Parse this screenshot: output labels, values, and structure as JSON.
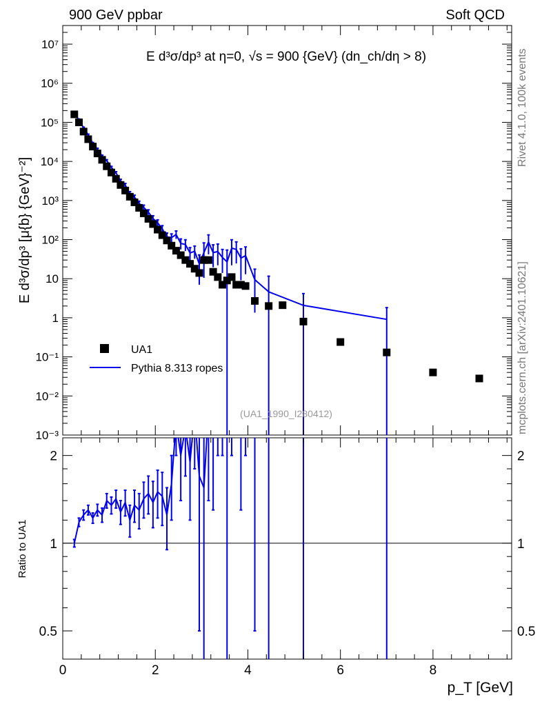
{
  "header": {
    "left": "900 GeV ppbar",
    "right": "Soft QCD"
  },
  "side_text": {
    "rivet": "Rivet 4.1.0,  100k events",
    "mcplots": "mcplots.cern.ch [arXiv:2401.10621]"
  },
  "chart_data": {
    "type": "scatter",
    "title": "E  d³σ/dp³ at η=0, √s = 900 {GeV} (dn_ch/dη > 8)",
    "watermark": "(UA1_1990_I280412)",
    "xlabel": "p_T [GeV]",
    "ylabel_main": "E d³σ/dp³ [μ{b} {GeV}⁻²]",
    "ylabel_ratio": "Ratio to UA1",
    "xlim": [
      0,
      9.7
    ],
    "ylim_main": [
      0.001,
      30000000
    ],
    "ylim_ratio": [
      0.4,
      2.3
    ],
    "yscale": "log",
    "x_ticks": [
      "0",
      "2",
      "4",
      "6",
      "8"
    ],
    "y_ticks_main": [
      "10⁻³",
      "10⁻²",
      "10⁻¹",
      "1",
      "10",
      "10²",
      "10³",
      "10⁴",
      "10⁵",
      "10⁶",
      "10⁷"
    ],
    "y_ticks_ratio": [
      "0.5",
      "1",
      "2"
    ],
    "legend": {
      "position": "lower-left",
      "entries": [
        "UA1",
        "Pythia 8.313 ropes"
      ]
    },
    "colors": {
      "data": "#000000",
      "mc": "#0000ee"
    },
    "data_series": {
      "name": "UA1",
      "x": [
        0.25,
        0.35,
        0.45,
        0.55,
        0.65,
        0.75,
        0.85,
        0.95,
        1.05,
        1.15,
        1.25,
        1.35,
        1.45,
        1.55,
        1.65,
        1.75,
        1.85,
        1.95,
        2.05,
        2.15,
        2.25,
        2.35,
        2.45,
        2.55,
        2.65,
        2.75,
        2.85,
        2.95,
        3.05,
        3.15,
        3.25,
        3.35,
        3.45,
        3.55,
        3.65,
        3.75,
        3.85,
        3.95,
        4.15,
        4.45,
        4.75,
        5.2,
        6.0,
        7.0,
        8.0,
        9.0
      ],
      "y": [
        160000,
        100000,
        58000,
        37000,
        24000,
        16000,
        11000,
        7500,
        5200,
        3600,
        2500,
        1800,
        1250,
        900,
        650,
        470,
        340,
        250,
        180,
        130,
        95,
        70,
        52,
        40,
        30,
        24,
        18,
        14,
        30,
        30,
        15,
        11,
        7,
        9,
        11,
        7,
        7,
        6.5,
        2.7,
        2,
        2.1,
        0.8,
        0.24,
        0.13,
        0.04,
        0.028
      ]
    },
    "mc_series": {
      "name": "Pythia 8.313 ropes",
      "x": [
        0.25,
        0.35,
        0.45,
        0.55,
        0.65,
        0.75,
        0.85,
        0.95,
        1.05,
        1.15,
        1.25,
        1.35,
        1.45,
        1.55,
        1.65,
        1.75,
        1.85,
        1.95,
        2.05,
        2.15,
        2.25,
        2.35,
        2.45,
        2.55,
        2.65,
        2.75,
        2.85,
        2.95,
        3.05,
        3.15,
        3.25,
        3.35,
        3.45,
        3.55,
        3.65,
        3.75,
        3.85,
        3.95,
        4.15,
        4.45,
        5.2,
        7.0
      ],
      "ratio": [
        1.0,
        1.18,
        1.25,
        1.3,
        1.22,
        1.3,
        1.25,
        1.4,
        1.35,
        1.42,
        1.28,
        1.38,
        1.2,
        1.35,
        1.3,
        1.42,
        1.48,
        1.38,
        1.5,
        1.45,
        1.25,
        1.6,
        2.6,
        2.0,
        2.5,
        1.9,
        2.8,
        1.7,
        1.55,
        2.9,
        3.1,
        4.5,
        5.0,
        3.0,
        5.5,
        8.0,
        4.8,
        6.0,
        3.5,
        2.3,
        2.6,
        7.0
      ],
      "ratio_err": [
        0.03,
        0.04,
        0.05,
        0.05,
        0.05,
        0.06,
        0.07,
        0.08,
        0.09,
        0.1,
        0.12,
        0.14,
        0.15,
        0.17,
        0.18,
        0.2,
        0.22,
        0.25,
        0.28,
        0.3,
        0.3,
        0.4,
        0.6,
        0.6,
        0.8,
        0.7,
        1.0,
        1.2,
        1.2,
        1.5,
        1.8,
        2.5,
        3.0,
        3.0,
        3.5,
        4.5,
        3.5,
        4.0,
        3.0,
        3.5,
        2.6,
        7.0
      ]
    }
  }
}
